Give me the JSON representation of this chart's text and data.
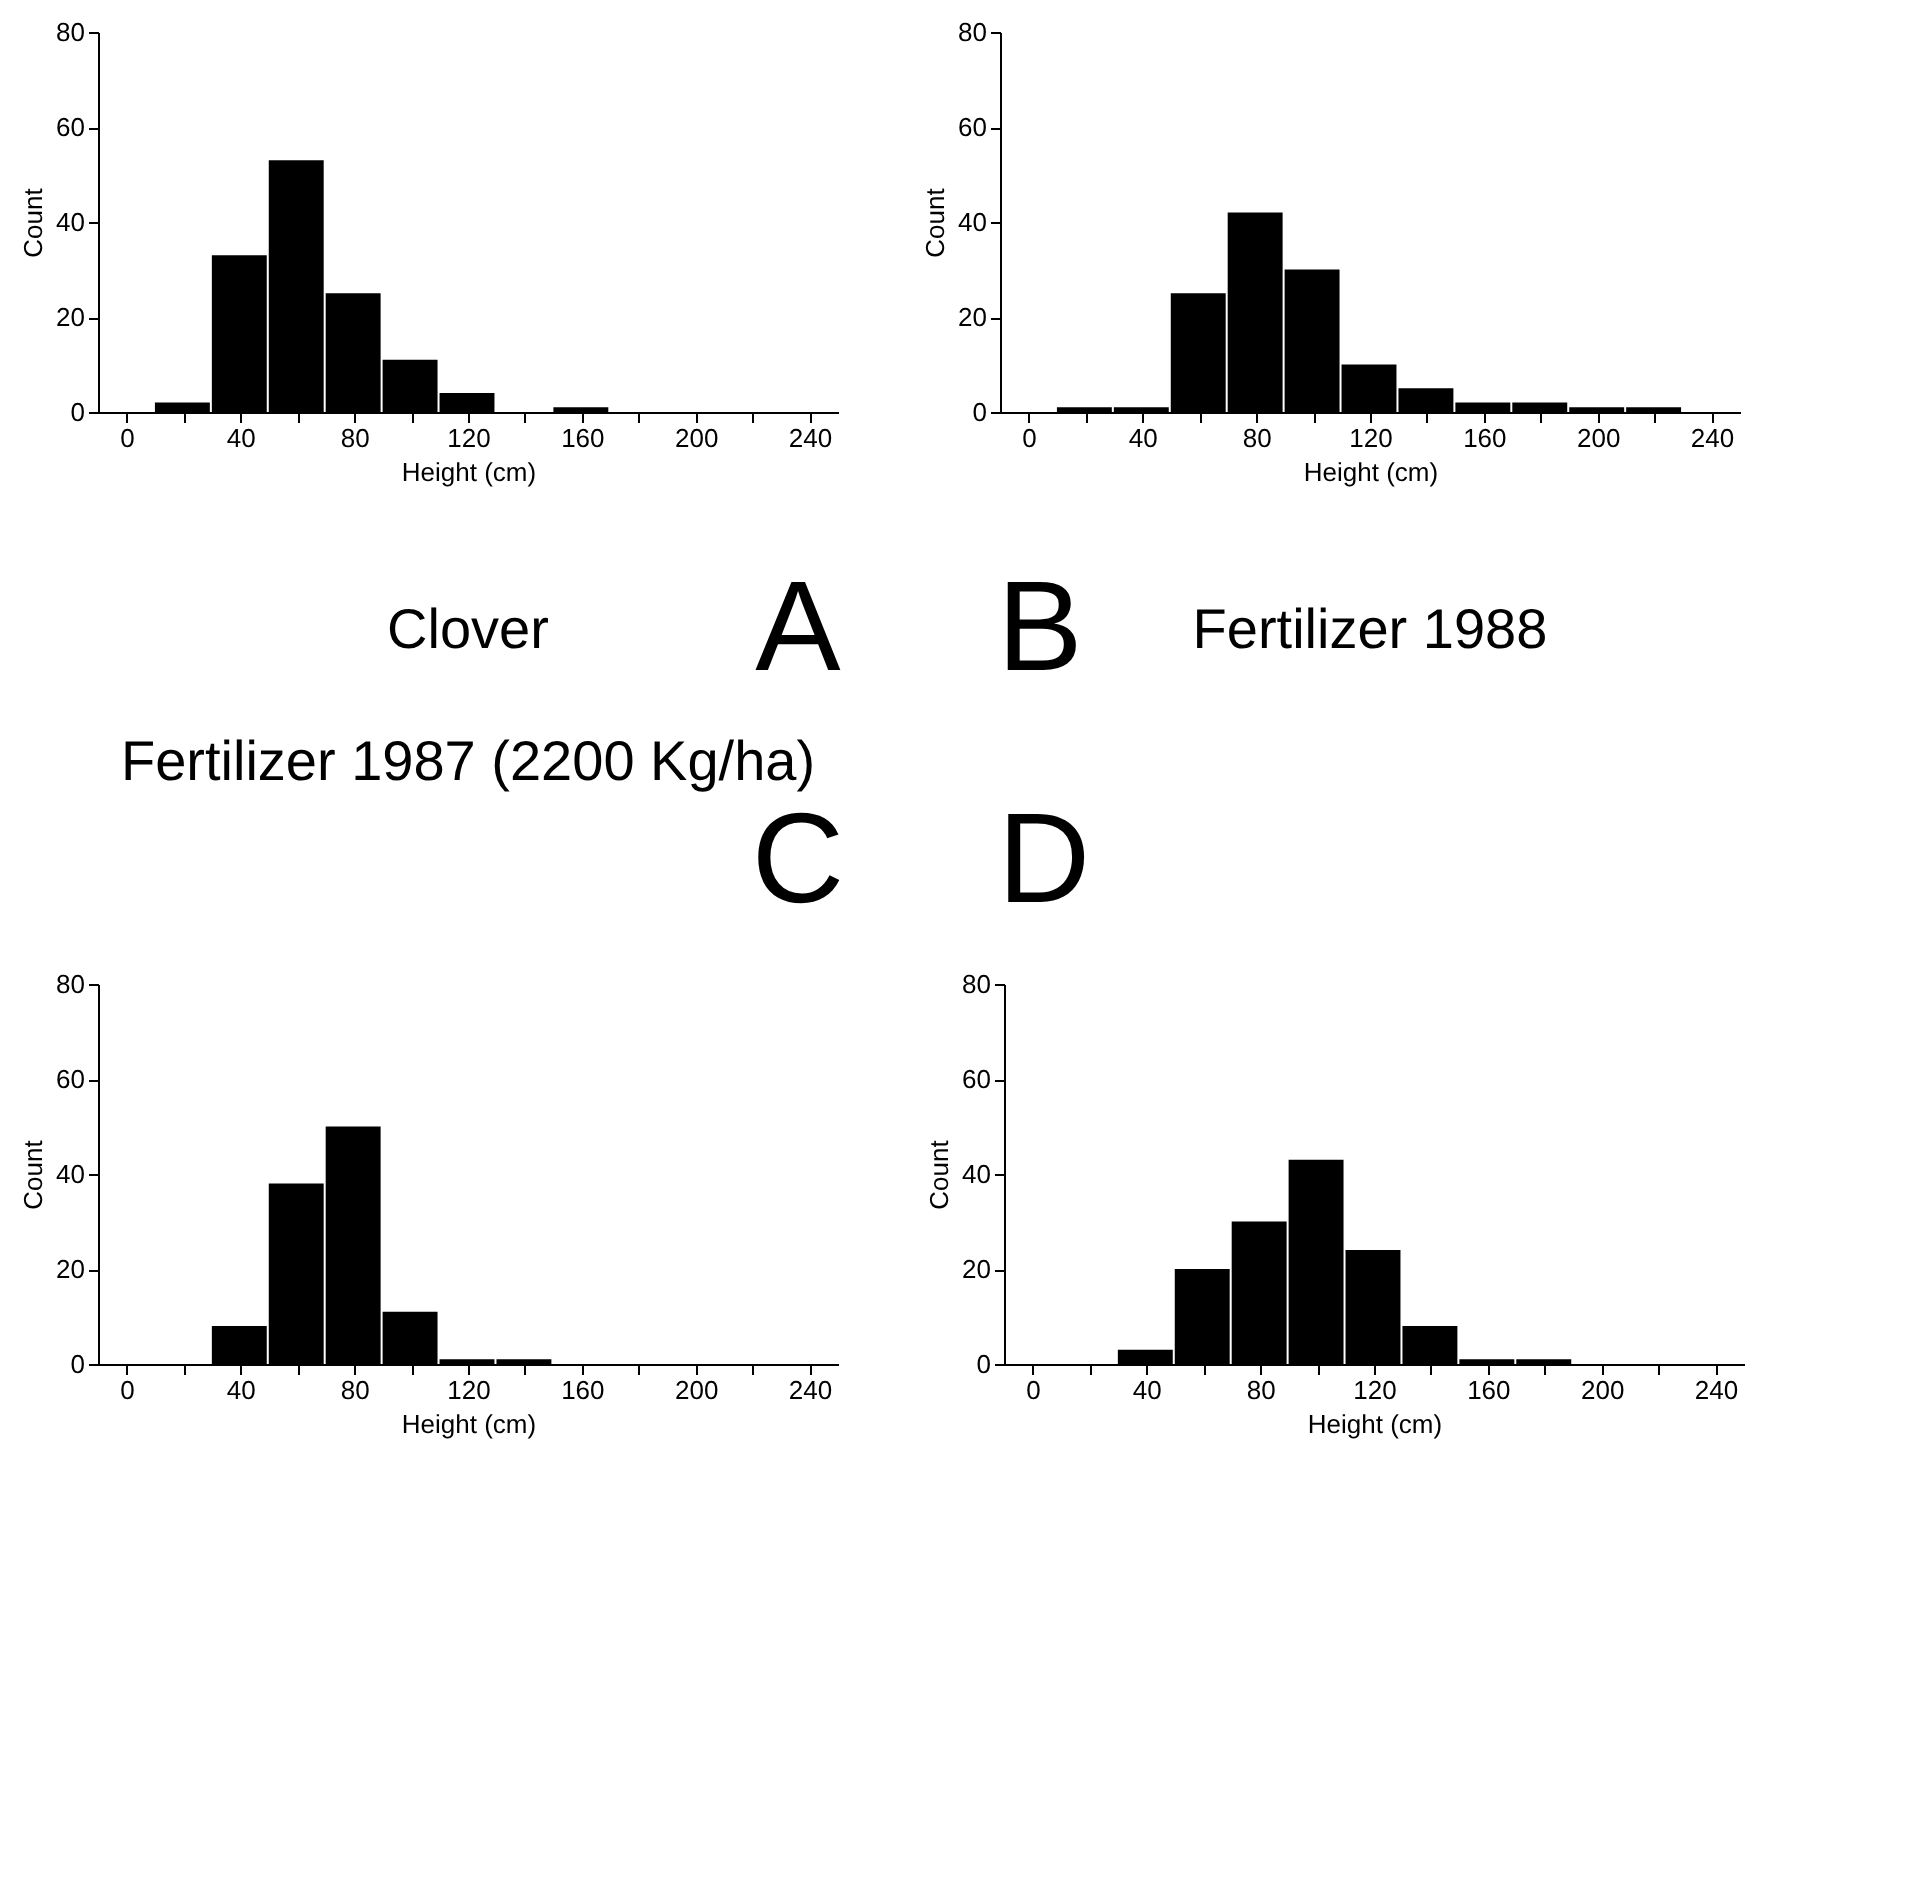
{
  "chart_data": [
    {
      "type": "histogram",
      "bins": [
        10,
        30,
        50,
        70,
        90,
        110,
        130,
        150,
        170
      ],
      "values": [
        2,
        33,
        53,
        25,
        11,
        4,
        0,
        1
      ],
      "color": "#000000",
      "xlabel": "Height (cm)",
      "ylabel": "Count",
      "xlim": [
        -10,
        250
      ],
      "ylim": [
        0,
        80
      ],
      "xticks": [
        0,
        {
          "value": 20,
          "label": null
        },
        40,
        {
          "value": 60,
          "label": null
        },
        80,
        {
          "value": 100,
          "label": null
        },
        120,
        {
          "value": 140,
          "label": null
        },
        160,
        {
          "value": 180,
          "label": null
        },
        200,
        {
          "value": 220,
          "label": null
        },
        240
      ],
      "yticks": [
        0,
        20,
        40,
        60,
        80
      ],
      "grid": false,
      "annotations": [
        "A",
        "Clover"
      ]
    },
    {
      "type": "histogram",
      "bins": [
        10,
        30,
        50,
        70,
        90,
        110,
        130,
        150,
        170,
        190,
        210,
        230
      ],
      "values": [
        1,
        1,
        25,
        42,
        30,
        10,
        5,
        2,
        2,
        1,
        1
      ],
      "color": "#000000",
      "xlabel": "Height (cm)",
      "ylabel": "Count",
      "xlim": [
        -10,
        250
      ],
      "ylim": [
        0,
        80
      ],
      "xticks": [
        0,
        {
          "value": 20,
          "label": null
        },
        40,
        {
          "value": 60,
          "label": null
        },
        80,
        {
          "value": 100,
          "label": null
        },
        120,
        {
          "value": 140,
          "label": null
        },
        160,
        {
          "value": 180,
          "label": null
        },
        200,
        {
          "value": 220,
          "label": null
        },
        240
      ],
      "yticks": [
        0,
        20,
        40,
        60,
        80
      ],
      "grid": false,
      "annotations": [
        "B",
        "Fertilizer 1988"
      ]
    },
    {
      "type": "histogram",
      "bins": [
        30,
        50,
        70,
        90,
        110,
        130,
        150
      ],
      "values": [
        8,
        38,
        50,
        11,
        1,
        1
      ],
      "color": "#000000",
      "xlabel": "Height (cm)",
      "ylabel": "Count",
      "xlim": [
        -10,
        250
      ],
      "ylim": [
        0,
        80
      ],
      "xticks": [
        0,
        {
          "value": 20,
          "label": null
        },
        40,
        {
          "value": 60,
          "label": null
        },
        80,
        {
          "value": 100,
          "label": null
        },
        120,
        {
          "value": 140,
          "label": null
        },
        160,
        {
          "value": 180,
          "label": null
        },
        200,
        {
          "value": 220,
          "label": null
        },
        240
      ],
      "yticks": [
        0,
        20,
        40,
        60,
        80
      ],
      "grid": false,
      "annotations": [
        "C",
        "Fertilizer 1987 (2200 Kg/ha)"
      ]
    },
    {
      "type": "histogram",
      "bins": [
        30,
        50,
        70,
        90,
        110,
        130,
        150,
        170,
        190
      ],
      "values": [
        3,
        20,
        30,
        43,
        24,
        8,
        1,
        1
      ],
      "color": "#000000",
      "xlabel": "Height (cm)",
      "ylabel": "Count",
      "xlim": [
        -10,
        250
      ],
      "ylim": [
        0,
        80
      ],
      "xticks": [
        0,
        {
          "value": 20,
          "label": null
        },
        40,
        {
          "value": 60,
          "label": null
        },
        80,
        {
          "value": 100,
          "label": null
        },
        120,
        {
          "value": 140,
          "label": null
        },
        160,
        {
          "value": 180,
          "label": null
        },
        200,
        {
          "value": 220,
          "label": null
        },
        240
      ],
      "yticks": [
        0,
        20,
        40,
        60,
        80
      ],
      "grid": false,
      "annotations": [
        "D"
      ]
    }
  ]
}
